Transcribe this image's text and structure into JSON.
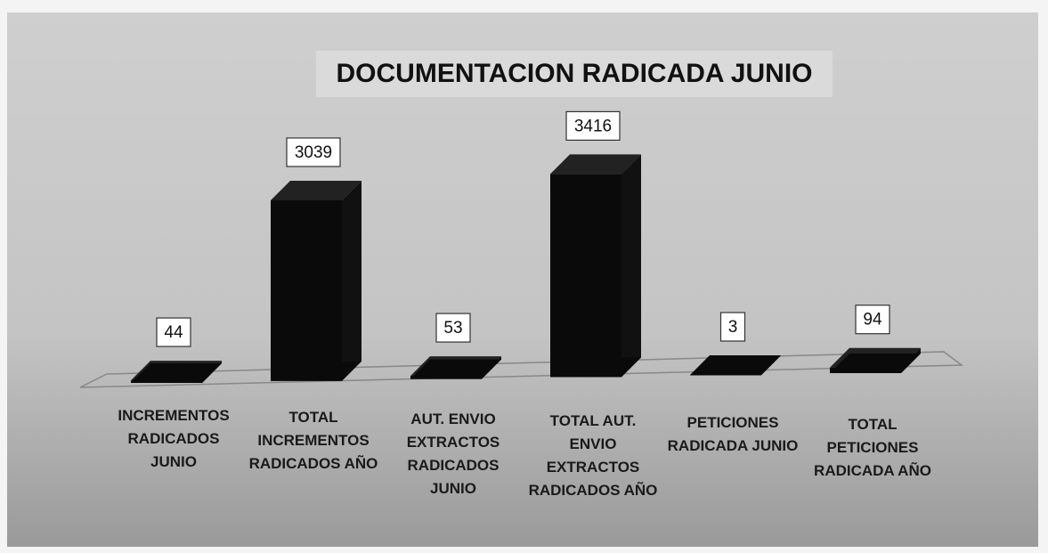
{
  "chart_data": {
    "type": "bar3d",
    "title": "DOCUMENTACION RADICADA JUNIO",
    "categories": [
      "INCREMENTOS RADICADOS JUNIO",
      "TOTAL INCREMENTOS RADICADOS AÑO",
      "AUT. ENVIO EXTRACTOS RADICADOS JUNIO",
      "TOTAL AUT. ENVIO EXTRACTOS RADICADOS AÑO",
      "PETICIONES RADICADA JUNIO",
      "TOTAL PETICIONES RADICADA AÑO"
    ],
    "values": [
      44,
      3039,
      53,
      3416,
      3,
      94
    ],
    "color": "#0a0a0a"
  }
}
